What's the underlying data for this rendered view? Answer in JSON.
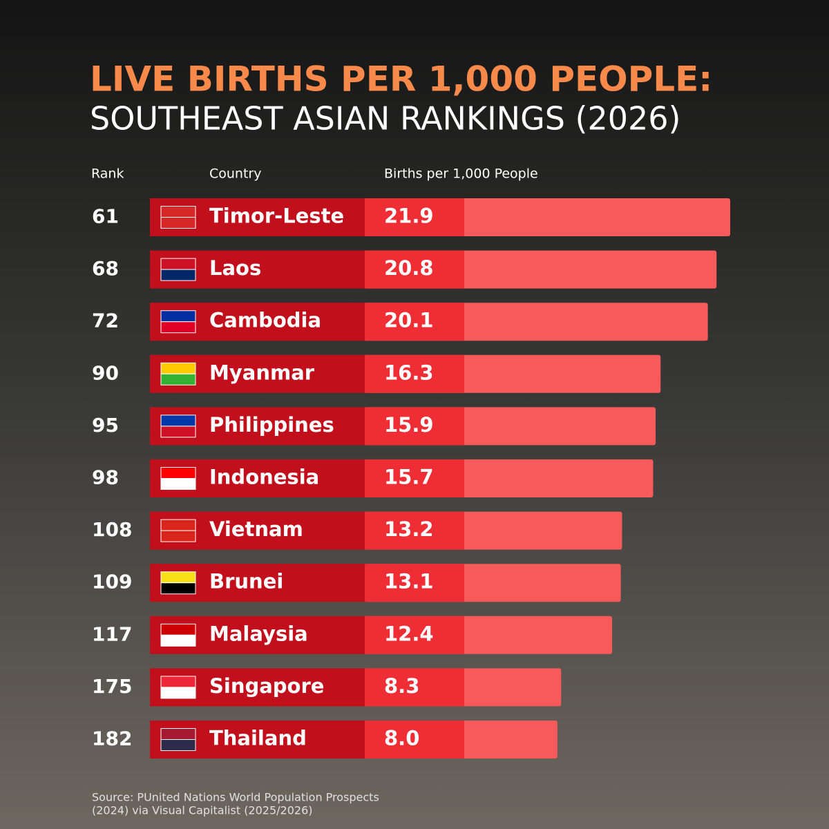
{
  "chart_data": {
    "type": "bar",
    "title": "LIVE BIRTHS PER 1,000 PEOPLE:",
    "subtitle": "SOUTHEAST ASIAN RANKINGS (2026)",
    "column_headers": [
      "Rank",
      "Country",
      "Births per 1,000 People"
    ],
    "ranks": [
      61,
      68,
      72,
      90,
      95,
      98,
      108,
      109,
      117,
      175,
      182
    ],
    "categories": [
      "Timor-Leste",
      "Laos",
      "Cambodia",
      "Myanmar",
      "Philippines",
      "Indonesia",
      "Vietnam",
      "Brunei",
      "Malaysia",
      "Singapore",
      "Thailand"
    ],
    "values": [
      21.9,
      20.8,
      20.1,
      16.3,
      15.9,
      15.7,
      13.2,
      13.1,
      12.4,
      8.3,
      8.0
    ],
    "value_labels": [
      "21.9",
      "20.8",
      "20.1",
      "16.3",
      "15.9",
      "15.7",
      "13.2",
      "13.1",
      "12.4",
      "8.3",
      "8.0"
    ],
    "color": "#f65a5a",
    "source": [
      "Source: PUnited Nations World Population Prospects",
      "(2024) via Visual Capitalist (2025/2026)"
    ]
  }
}
